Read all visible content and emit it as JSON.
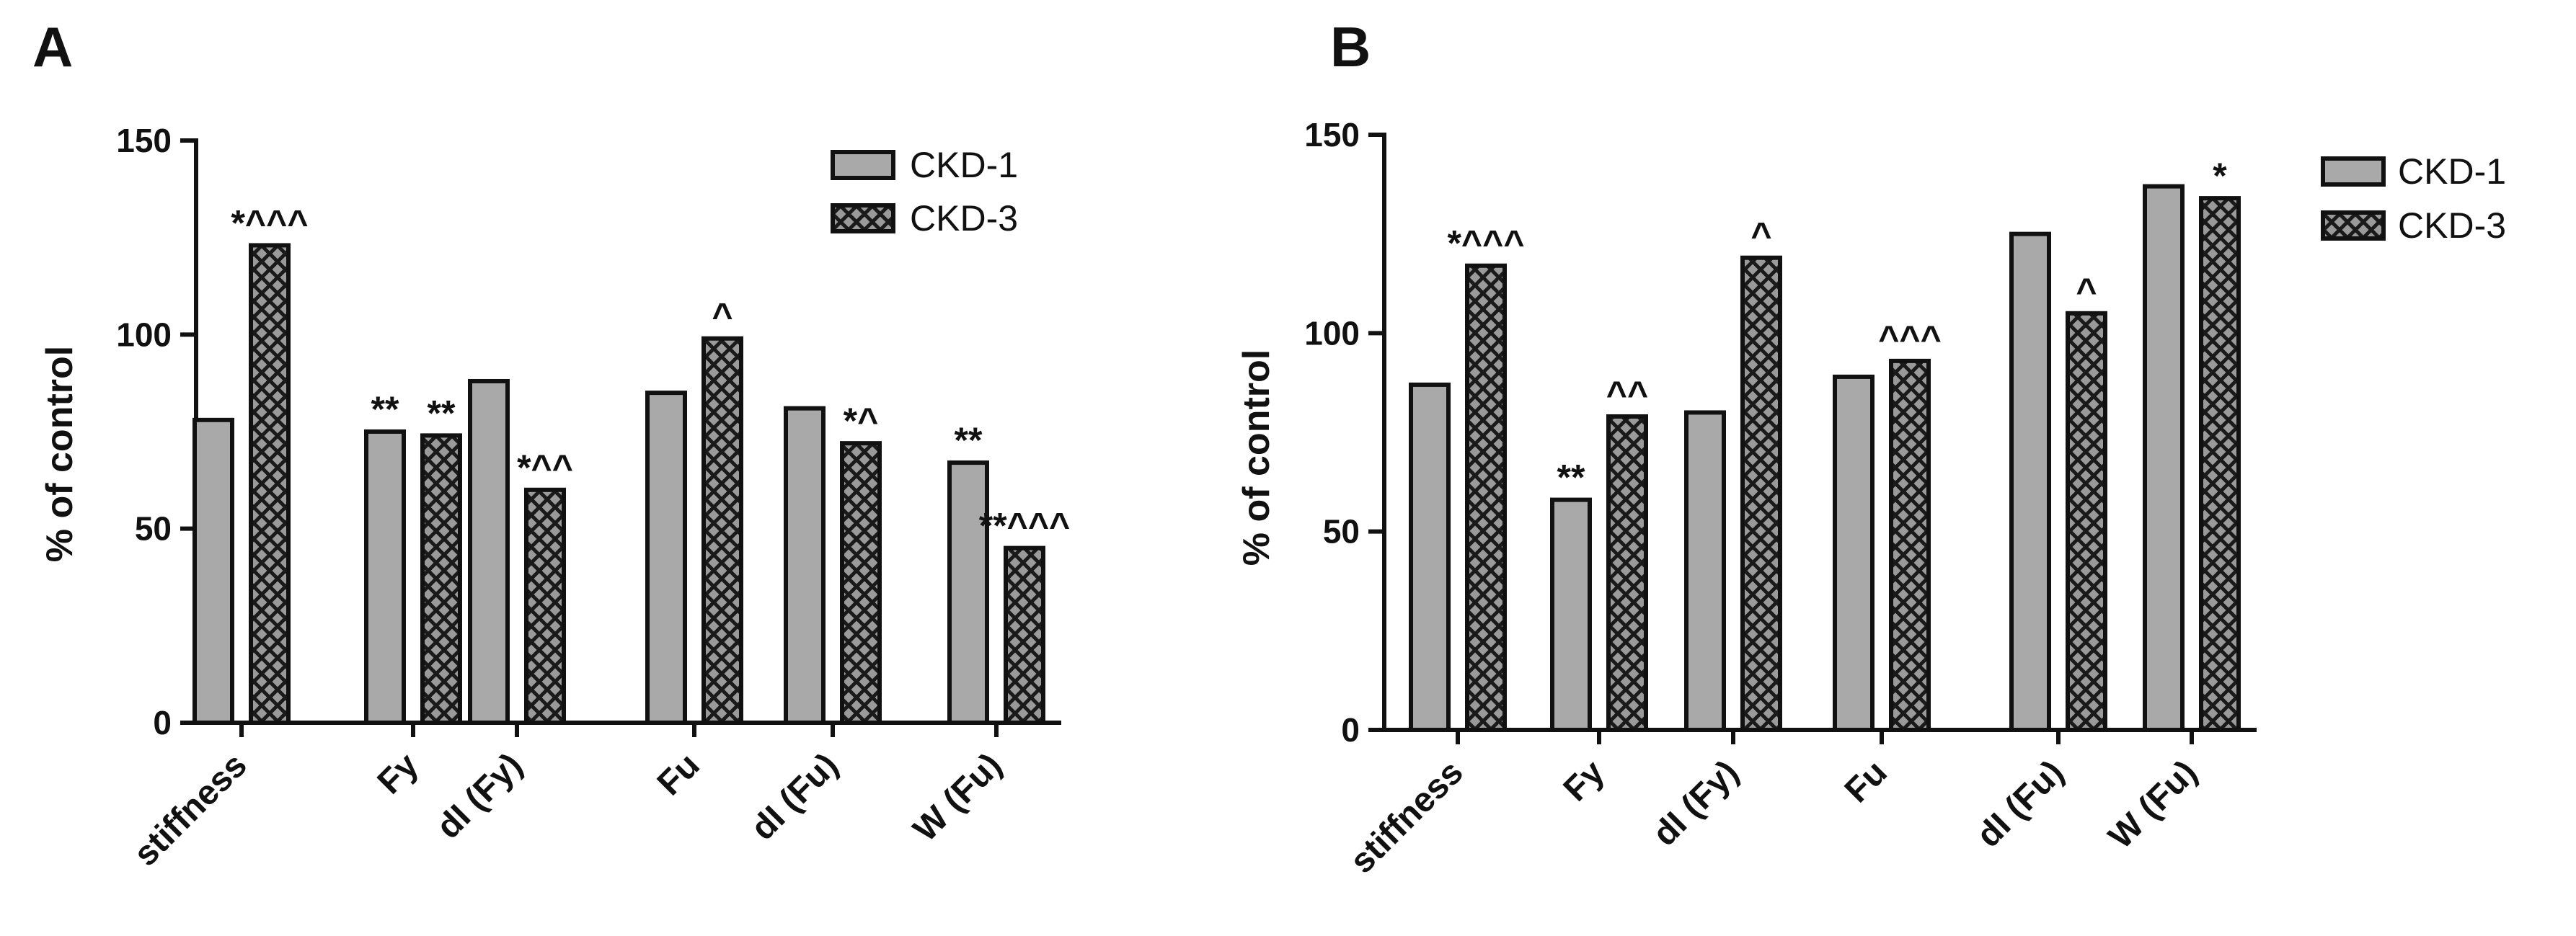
{
  "colors": {
    "ckd1": "#a9a9a9",
    "ckd3_base": "#9a9a9a",
    "ckd3_pattern": "#1a1a1a",
    "axis": "#111111"
  },
  "chart_data": [
    {
      "panel": "A",
      "type": "bar",
      "ylabel": "% of control",
      "ylim": [
        0,
        150
      ],
      "yticks": [
        0,
        50,
        100,
        150
      ],
      "categories": [
        "stiffness",
        "Fy",
        "dI (Fy)",
        "Fu",
        "dI (Fu)",
        "W (Fu)"
      ],
      "legend": [
        "CKD-1",
        "CKD-3"
      ],
      "series": [
        {
          "name": "CKD-1",
          "values": [
            78,
            75,
            88,
            85,
            81,
            67
          ],
          "annotations": [
            "",
            "**",
            "",
            "",
            "",
            "**"
          ]
        },
        {
          "name": "CKD-3",
          "values": [
            123,
            74,
            60,
            99,
            72,
            45
          ],
          "annotations": [
            "*^^^",
            "**",
            "*^^",
            "^",
            "*^",
            "**^^^"
          ]
        }
      ]
    },
    {
      "panel": "B",
      "type": "bar",
      "ylabel": "% of control",
      "ylim": [
        0,
        150
      ],
      "yticks": [
        0,
        50,
        100,
        150
      ],
      "categories": [
        "stiffness",
        "Fy",
        "dI (Fy)",
        "Fu",
        "dI (Fu)",
        "W (Fu)"
      ],
      "legend": [
        "CKD-1",
        "CKD-3"
      ],
      "series": [
        {
          "name": "CKD-1",
          "values": [
            87,
            58,
            80,
            89,
            125,
            137
          ],
          "annotations": [
            "",
            "**",
            "",
            "",
            "",
            ""
          ]
        },
        {
          "name": "CKD-3",
          "values": [
            117,
            79,
            119,
            93,
            105,
            134
          ],
          "annotations": [
            "*^^^",
            "^^",
            "^",
            "^^^",
            "^",
            "*"
          ]
        }
      ]
    }
  ]
}
